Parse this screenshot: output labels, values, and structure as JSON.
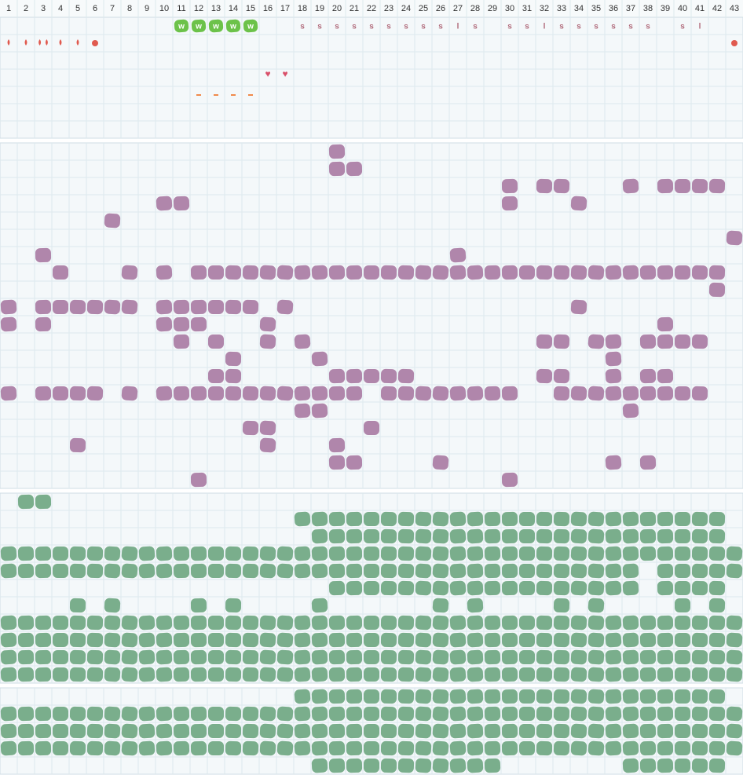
{
  "columns": [
    1,
    2,
    3,
    4,
    5,
    6,
    7,
    8,
    9,
    10,
    11,
    12,
    13,
    14,
    15,
    16,
    17,
    18,
    19,
    20,
    21,
    22,
    23,
    24,
    25,
    26,
    27,
    28,
    29,
    30,
    31,
    32,
    33,
    34,
    35,
    36,
    37,
    38,
    39,
    40,
    41,
    42,
    43
  ],
  "top_section": {
    "labels": [
      {
        "col": 11,
        "label": "w"
      },
      {
        "col": 12,
        "label": "w"
      },
      {
        "col": 13,
        "label": "w"
      },
      {
        "col": 14,
        "label": "w"
      },
      {
        "col": 15,
        "label": "w"
      },
      {
        "col": 18,
        "label": "s"
      },
      {
        "col": 19,
        "label": "s"
      },
      {
        "col": 20,
        "label": "s"
      },
      {
        "col": 21,
        "label": "s"
      },
      {
        "col": 22,
        "label": "s"
      },
      {
        "col": 23,
        "label": "s"
      },
      {
        "col": 24,
        "label": "s"
      },
      {
        "col": 25,
        "label": "s"
      },
      {
        "col": 26,
        "label": "s"
      },
      {
        "col": 27,
        "label": "l"
      },
      {
        "col": 28,
        "label": "s"
      },
      {
        "col": 30,
        "label": "s"
      },
      {
        "col": 31,
        "label": "s"
      },
      {
        "col": 32,
        "label": "l"
      },
      {
        "col": 33,
        "label": "s"
      },
      {
        "col": 34,
        "label": "s"
      },
      {
        "col": 35,
        "label": "s"
      },
      {
        "col": 36,
        "label": "s"
      },
      {
        "col": 37,
        "label": "s"
      },
      {
        "col": 38,
        "label": "s"
      },
      {
        "col": 40,
        "label": "s"
      },
      {
        "col": 41,
        "label": "l"
      }
    ]
  },
  "purple_section": {
    "rows": [
      [
        [
          20,
          20
        ]
      ],
      [
        [
          20,
          21
        ]
      ],
      [
        [
          30,
          30
        ],
        [
          32,
          33
        ],
        [
          37,
          37
        ],
        [
          39,
          42
        ]
      ],
      [
        [
          10,
          11
        ],
        [
          30,
          30
        ],
        [
          34,
          34
        ]
      ],
      [
        [
          7,
          7
        ]
      ],
      [
        [
          43,
          43
        ]
      ],
      [
        [
          3,
          3
        ],
        [
          27,
          27
        ]
      ],
      [
        [
          4,
          4
        ],
        [
          8,
          8
        ],
        [
          10,
          10
        ],
        [
          12,
          42
        ]
      ],
      [
        [
          42,
          42
        ]
      ],
      [
        [
          1,
          1
        ],
        [
          3,
          8
        ],
        [
          10,
          15
        ],
        [
          17,
          17
        ],
        [
          34,
          34
        ]
      ],
      [
        [
          1,
          1
        ],
        [
          3,
          3
        ],
        [
          10,
          12
        ],
        [
          16,
          16
        ],
        [
          39,
          39
        ]
      ],
      [
        [
          11,
          11
        ],
        [
          13,
          13
        ],
        [
          16,
          16
        ],
        [
          18,
          18
        ],
        [
          32,
          33
        ],
        [
          35,
          36
        ],
        [
          38,
          41
        ]
      ],
      [
        [
          14,
          14
        ],
        [
          19,
          19
        ],
        [
          36,
          36
        ]
      ],
      [
        [
          13,
          14
        ],
        [
          20,
          24
        ],
        [
          32,
          33
        ],
        [
          36,
          36
        ],
        [
          38,
          39
        ]
      ],
      [
        [
          1,
          1
        ],
        [
          3,
          6
        ],
        [
          8,
          8
        ],
        [
          10,
          21
        ],
        [
          23,
          30
        ],
        [
          33,
          41
        ]
      ],
      [
        [
          18,
          19
        ],
        [
          37,
          37
        ]
      ],
      [
        [
          15,
          16
        ],
        [
          22,
          22
        ]
      ],
      [
        [
          5,
          5
        ],
        [
          16,
          16
        ],
        [
          20,
          20
        ]
      ],
      [
        [
          20,
          21
        ],
        [
          26,
          26
        ],
        [
          36,
          36
        ],
        [
          38,
          38
        ]
      ],
      [
        [
          12,
          12
        ],
        [
          30,
          30
        ]
      ]
    ]
  },
  "green_section": {
    "rows": [
      [
        [
          2,
          3
        ]
      ],
      [
        [
          18,
          42
        ]
      ],
      [
        [
          19,
          42
        ]
      ],
      [
        [
          1,
          43
        ]
      ],
      [
        [
          1,
          37
        ],
        [
          39,
          43
        ]
      ],
      [
        [
          20,
          37
        ],
        [
          39,
          42
        ]
      ],
      [
        [
          5,
          5
        ],
        [
          7,
          7
        ],
        [
          12,
          12
        ],
        [
          14,
          14
        ],
        [
          19,
          19
        ],
        [
          26,
          26
        ],
        [
          28,
          28
        ],
        [
          33,
          33
        ],
        [
          35,
          35
        ],
        [
          40,
          40
        ],
        [
          42,
          42
        ]
      ],
      [
        [
          1,
          43
        ]
      ],
      [
        [
          1,
          43
        ]
      ],
      [
        [
          1,
          43
        ]
      ],
      [
        [
          1,
          43
        ]
      ]
    ]
  },
  "bottom_section": {
    "rows": [
      [
        [
          18,
          42
        ]
      ],
      [
        [
          1,
          43
        ]
      ],
      [
        [
          1,
          43
        ]
      ],
      [
        [
          1,
          43
        ]
      ],
      [
        [
          19,
          29
        ],
        [
          37,
          42
        ]
      ]
    ]
  }
}
